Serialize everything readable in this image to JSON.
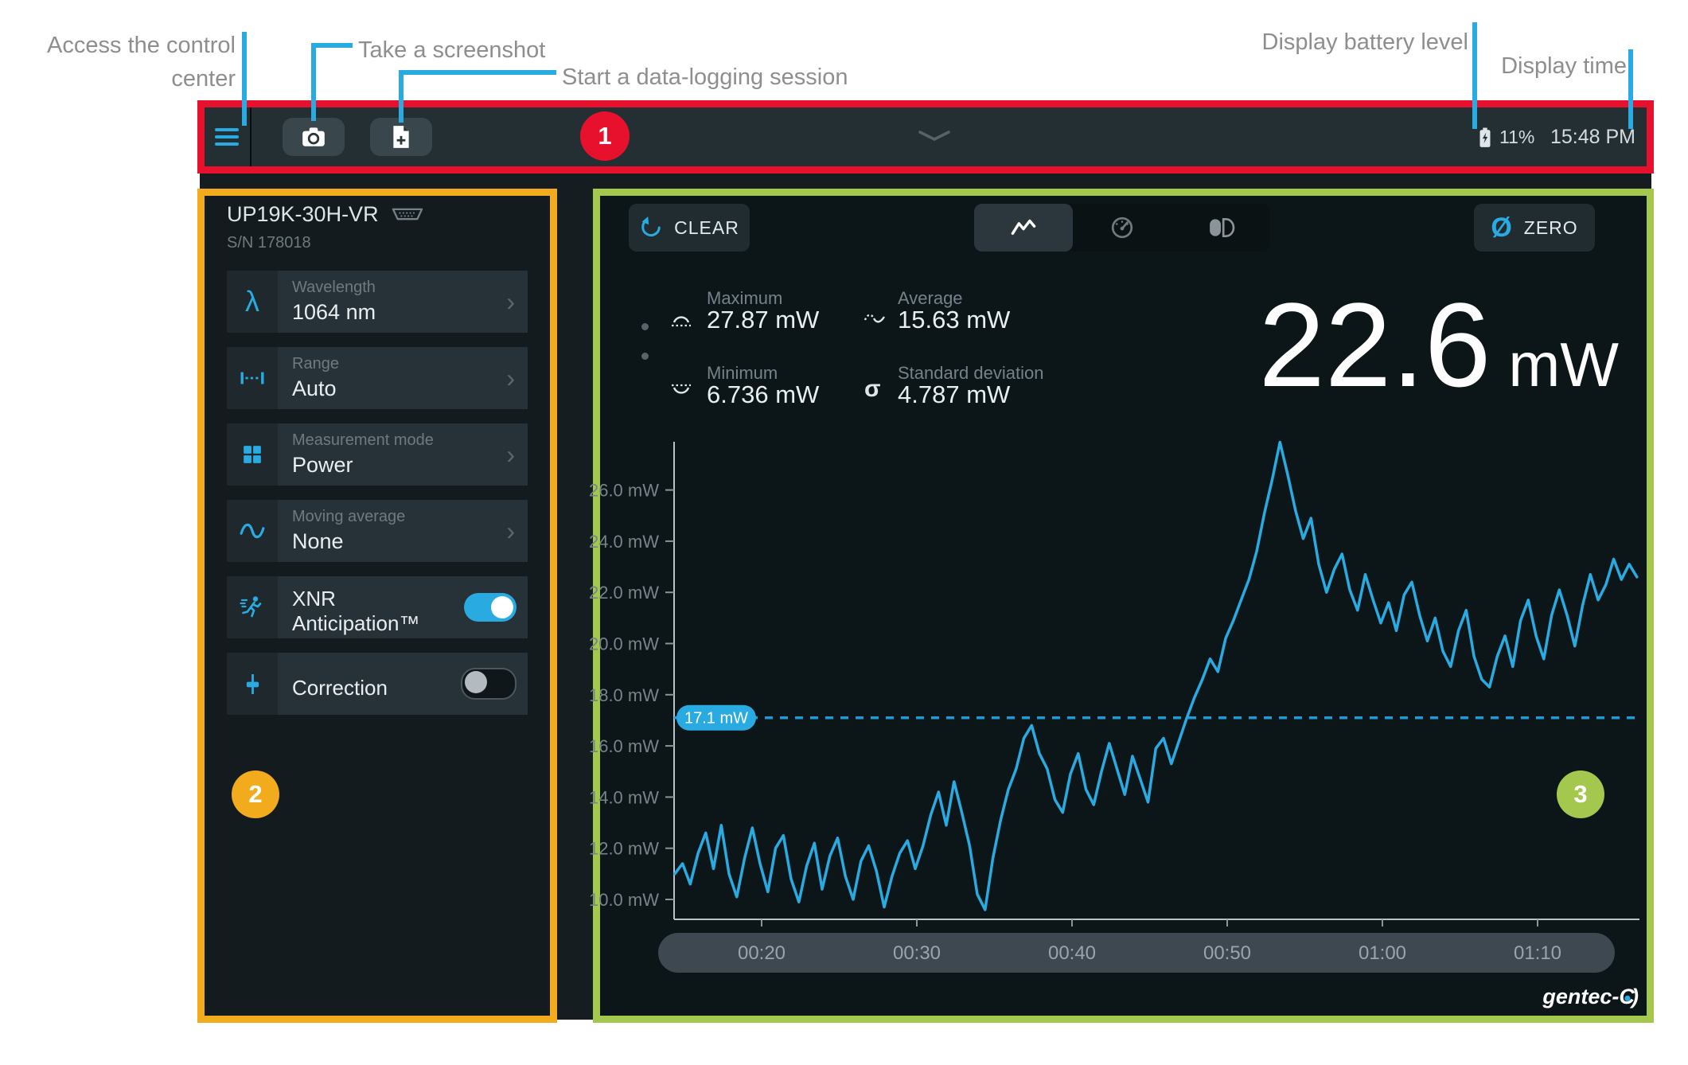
{
  "annotations": {
    "access_control": "Access the control center",
    "screenshot": "Take a screenshot",
    "datalog": "Start a data-logging session",
    "battery": "Display battery level",
    "time": "Display time",
    "badge1": "1",
    "badge2": "2",
    "badge3": "3"
  },
  "toolbar": {
    "battery_percent": "11%",
    "time": "15:48 PM"
  },
  "sidebar": {
    "device_name": "UP19K-30H-VR",
    "serial": "S/N 178018",
    "items": [
      {
        "label": "Wavelength",
        "value": "1064 nm"
      },
      {
        "label": "Range",
        "value": "Auto"
      },
      {
        "label": "Measurement mode",
        "value": "Power"
      },
      {
        "label": "Moving average",
        "value": "None"
      },
      {
        "label": "XNR Anticipation™",
        "toggle_on": true
      },
      {
        "label": "Correction",
        "toggle_on": false
      }
    ]
  },
  "main": {
    "clear_label": "CLEAR",
    "zero_label": "ZERO",
    "stats": [
      {
        "label": "Maximum",
        "value": "27.87 mW"
      },
      {
        "label": "Average",
        "value": "15.63 mW"
      },
      {
        "label": "Minimum",
        "value": "6.736 mW"
      },
      {
        "label": "Standard deviation",
        "value": "4.787 mW"
      }
    ],
    "reading_value": "22.6",
    "reading_unit": "mW",
    "logo": {
      "prefix": "gentec-",
      "mark_c": "C",
      "mark_dot": "●",
      "mark_close": ")"
    }
  },
  "colors": {
    "accent_blue": "#29abe2",
    "annotation_red": "#e8112d",
    "annotation_yellow": "#f2ab1d",
    "annotation_green": "#a4c84e"
  },
  "chart_data": {
    "type": "line",
    "ylabel": "mW",
    "ylim": [
      9.2,
      27.9
    ],
    "grid": false,
    "legend": false,
    "line_color": "#29abe2",
    "threshold": {
      "value": 17.1,
      "label": "17.1 mW"
    },
    "current": {
      "value": 22.6,
      "unit": "mW"
    },
    "y_ticks": [
      {
        "value": 26,
        "label": "26.0 mW"
      },
      {
        "value": 24,
        "label": "24.0 mW"
      },
      {
        "value": 22,
        "label": "22.0 mW"
      },
      {
        "value": 20,
        "label": "20.0 mW"
      },
      {
        "value": 18,
        "label": "18.0 mW"
      },
      {
        "value": 16,
        "label": "16.0 mW"
      },
      {
        "value": 14,
        "label": "14.0 mW"
      },
      {
        "value": 12,
        "label": "12.0 mW"
      },
      {
        "value": 10,
        "label": "10.0 mW"
      }
    ],
    "x_ticks": [
      {
        "minute": 20,
        "label": "00:20"
      },
      {
        "minute": 30,
        "label": "00:30"
      },
      {
        "minute": 40,
        "label": "00:40"
      },
      {
        "minute": 50,
        "label": "00:50"
      },
      {
        "minute": 60,
        "label": "01:00"
      },
      {
        "minute": 70,
        "label": "01:10"
      }
    ],
    "series": [
      {
        "name": "power",
        "unit": "mW",
        "t_start_min": 14.4,
        "t_step_min": 0.5,
        "values": [
          11.0,
          11.4,
          10.6,
          11.8,
          12.6,
          11.2,
          12.9,
          11.0,
          10.1,
          11.6,
          12.8,
          11.4,
          10.3,
          12.0,
          12.5,
          10.8,
          9.9,
          11.3,
          12.2,
          10.4,
          11.7,
          12.4,
          10.9,
          10.0,
          11.5,
          12.1,
          11.1,
          9.7,
          10.9,
          11.8,
          12.3,
          11.2,
          12.1,
          13.3,
          14.2,
          12.9,
          14.6,
          13.4,
          12.1,
          10.2,
          9.6,
          11.6,
          13.1,
          14.3,
          15.1,
          16.3,
          16.8,
          15.7,
          15.1,
          13.9,
          13.4,
          14.9,
          15.7,
          14.3,
          13.7,
          15.0,
          16.1,
          15.1,
          14.1,
          15.6,
          14.7,
          13.8,
          15.9,
          16.3,
          15.3,
          16.2,
          17.1,
          17.9,
          18.6,
          19.4,
          18.9,
          20.2,
          20.9,
          21.7,
          22.5,
          23.6,
          25.1,
          26.4,
          27.87,
          26.6,
          25.2,
          24.1,
          24.9,
          23.1,
          22.0,
          22.9,
          23.5,
          22.1,
          21.3,
          22.7,
          21.7,
          20.8,
          21.6,
          20.5,
          21.9,
          22.4,
          21.1,
          20.1,
          21.0,
          19.7,
          19.1,
          20.5,
          21.3,
          19.5,
          18.6,
          18.3,
          19.5,
          20.3,
          19.1,
          20.9,
          21.7,
          20.3,
          19.4,
          21.1,
          22.1,
          21.1,
          19.9,
          21.5,
          22.7,
          21.7,
          22.3,
          23.3,
          22.5,
          23.1,
          22.6
        ]
      }
    ]
  }
}
